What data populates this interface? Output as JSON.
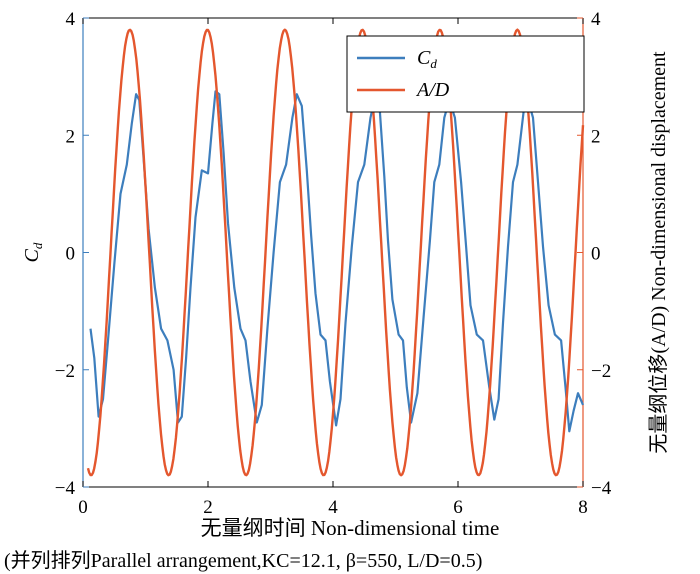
{
  "chart_data": {
    "type": "line",
    "title": "",
    "xlabel": "无量纲时间 Non-dimensional time",
    "ylabel_left": "C",
    "ylabel_left_sub": "d",
    "ylabel_right": "无量纲位移(A/D)  Non-dimensional displacement",
    "xlim": [
      0,
      8
    ],
    "ylim_left": [
      -4,
      4
    ],
    "ylim_right": [
      -4,
      4
    ],
    "x_ticks": [
      "0",
      "2",
      "4",
      "6",
      "8"
    ],
    "y_ticks_left": [
      "4",
      "2",
      "0",
      "−2",
      "−4"
    ],
    "y_ticks_right": [
      "4",
      "2",
      "0",
      "−2",
      "−4"
    ],
    "grid": false,
    "legend_position": "top-right",
    "series": [
      {
        "name": "C_d",
        "legend_label": "C",
        "legend_sub": "d",
        "color": "#3d7ebd",
        "axis": "left",
        "description_points": "sampled",
        "x": [
          0.12,
          0.18,
          0.25,
          0.32,
          0.4,
          0.5,
          0.6,
          0.7,
          0.78,
          0.85,
          0.9,
          0.97,
          1.05,
          1.15,
          1.25,
          1.35,
          1.45,
          1.52,
          1.58,
          1.65,
          1.72,
          1.8,
          1.9,
          2.0,
          2.07,
          2.12,
          2.18,
          2.25,
          2.32,
          2.42,
          2.52,
          2.6,
          2.68,
          2.78,
          2.86,
          2.95,
          3.05,
          3.15,
          3.25,
          3.35,
          3.42,
          3.5,
          3.58,
          3.65,
          3.72,
          3.8,
          3.88,
          3.95,
          4.05,
          4.12,
          4.2,
          4.3,
          4.4,
          4.5,
          4.6,
          4.68,
          4.75,
          4.82,
          4.88,
          4.95,
          5.05,
          5.12,
          5.18,
          5.25,
          5.35,
          5.45,
          5.55,
          5.62,
          5.7,
          5.78,
          5.86,
          5.95,
          6.05,
          6.13,
          6.2,
          6.3,
          6.4,
          6.5,
          6.58,
          6.65,
          6.72,
          6.8,
          6.88,
          6.95,
          7.05,
          7.12,
          7.2,
          7.28,
          7.36,
          7.45,
          7.55,
          7.65,
          7.72,
          7.78,
          7.85,
          7.92,
          8.0
        ],
        "values": [
          -1.3,
          -1.8,
          -2.8,
          -2.5,
          -1.5,
          -0.2,
          1.0,
          1.5,
          2.2,
          2.7,
          2.6,
          1.6,
          0.4,
          -0.6,
          -1.3,
          -1.5,
          -2.0,
          -2.9,
          -2.8,
          -1.8,
          -0.6,
          0.6,
          1.4,
          1.35,
          2.2,
          2.75,
          2.7,
          1.7,
          0.5,
          -0.6,
          -1.3,
          -1.5,
          -2.2,
          -2.9,
          -2.6,
          -1.3,
          0.0,
          1.2,
          1.5,
          2.3,
          2.7,
          2.5,
          1.4,
          0.3,
          -0.7,
          -1.4,
          -1.5,
          -2.2,
          -2.95,
          -2.5,
          -1.2,
          0.1,
          1.2,
          1.5,
          2.3,
          2.7,
          2.4,
          1.3,
          0.2,
          -0.8,
          -1.4,
          -1.5,
          -2.3,
          -2.9,
          -2.4,
          -1.1,
          0.2,
          1.2,
          1.5,
          2.3,
          2.6,
          2.3,
          1.2,
          0.1,
          -0.9,
          -1.4,
          -1.5,
          -2.3,
          -2.85,
          -2.5,
          -1.2,
          0.1,
          1.2,
          1.5,
          2.4,
          2.6,
          2.3,
          1.2,
          0.1,
          -0.9,
          -1.4,
          -1.5,
          -2.3,
          -3.05,
          -2.7,
          -2.4,
          -2.6
        ]
      },
      {
        "name": "A/D",
        "legend_label": "A/D",
        "color": "#e4572e",
        "axis": "right",
        "amplitude": 3.8,
        "period": 1.24,
        "phase_peak_x": 0.75
      }
    ]
  },
  "caption": "(并列排列Parallel arrangement,KC=12.1, β=550, L/D=0.5)"
}
